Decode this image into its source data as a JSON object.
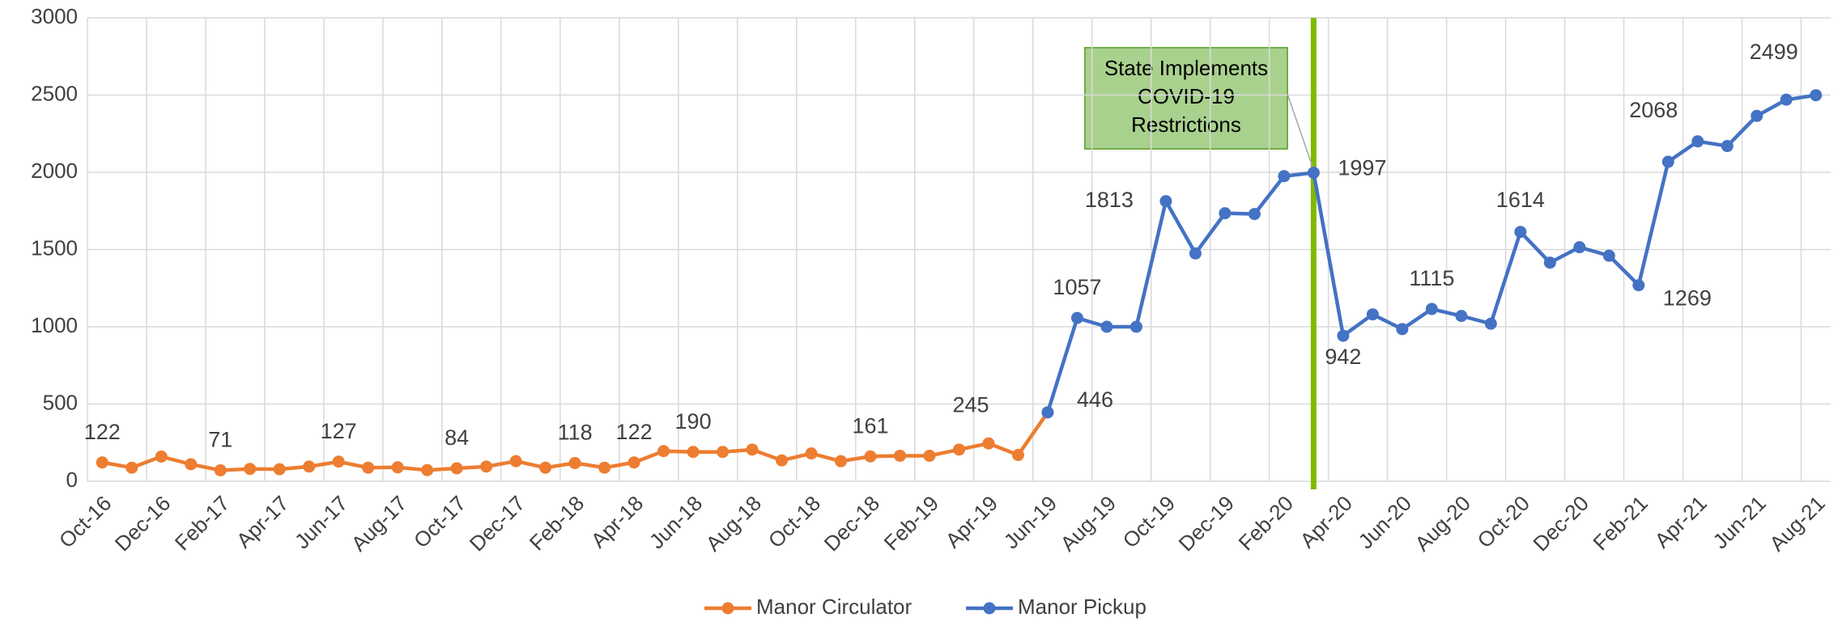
{
  "chart_data": {
    "type": "line",
    "categories": [
      "Oct-16",
      null,
      "Dec-16",
      null,
      "Feb-17",
      null,
      "Apr-17",
      null,
      "Jun-17",
      null,
      "Aug-17",
      null,
      "Oct-17",
      null,
      "Dec-17",
      null,
      "Feb-18",
      null,
      "Apr-18",
      null,
      "Jun-18",
      null,
      "Aug-18",
      null,
      "Oct-18",
      null,
      "Dec-18",
      null,
      "Feb-19",
      null,
      "Apr-19",
      null,
      "Jun-19",
      null,
      "Aug-19",
      null,
      "Oct-19",
      null,
      "Dec-19",
      null,
      "Feb-20",
      null,
      "Apr-20",
      null,
      "Jun-20",
      null,
      "Aug-20",
      null,
      "Oct-20",
      null,
      "Dec-20",
      null,
      "Feb-21",
      null,
      "Apr-21",
      null,
      "Jun-21",
      null,
      "Aug-21"
    ],
    "series": [
      {
        "name": "Manor Circulator",
        "color": "#ed7d31",
        "values": [
          122,
          88,
          160,
          110,
          71,
          80,
          78,
          95,
          127,
          88,
          90,
          72,
          84,
          95,
          130,
          88,
          118,
          88,
          122,
          195,
          190,
          190,
          205,
          135,
          180,
          130,
          161,
          165,
          165,
          205,
          245,
          170,
          446,
          null,
          null,
          null,
          null,
          null,
          null,
          null,
          null,
          null,
          null,
          null,
          null,
          null,
          null,
          null,
          null,
          null,
          null,
          null,
          null,
          null,
          null,
          null,
          null,
          null,
          null
        ]
      },
      {
        "name": "Manor Pickup",
        "color": "#4472c4",
        "values": [
          null,
          null,
          null,
          null,
          null,
          null,
          null,
          null,
          null,
          null,
          null,
          null,
          null,
          null,
          null,
          null,
          null,
          null,
          null,
          null,
          null,
          null,
          null,
          null,
          null,
          null,
          null,
          null,
          null,
          null,
          null,
          null,
          446,
          1057,
          1000,
          1000,
          1813,
          1475,
          1735,
          1730,
          1975,
          1997,
          942,
          1080,
          985,
          1115,
          1070,
          1020,
          1614,
          1415,
          1515,
          1460,
          1269,
          2068,
          2200,
          2170,
          2365,
          2470,
          2499
        ]
      }
    ],
    "annotation": [
      "State Implements",
      "COVID-19",
      "Restrictions"
    ],
    "ylim": [
      0,
      3000
    ],
    "yticks": [
      0,
      500,
      1000,
      1500,
      2000,
      2500,
      3000
    ],
    "grid": true,
    "legend": "bottom"
  }
}
